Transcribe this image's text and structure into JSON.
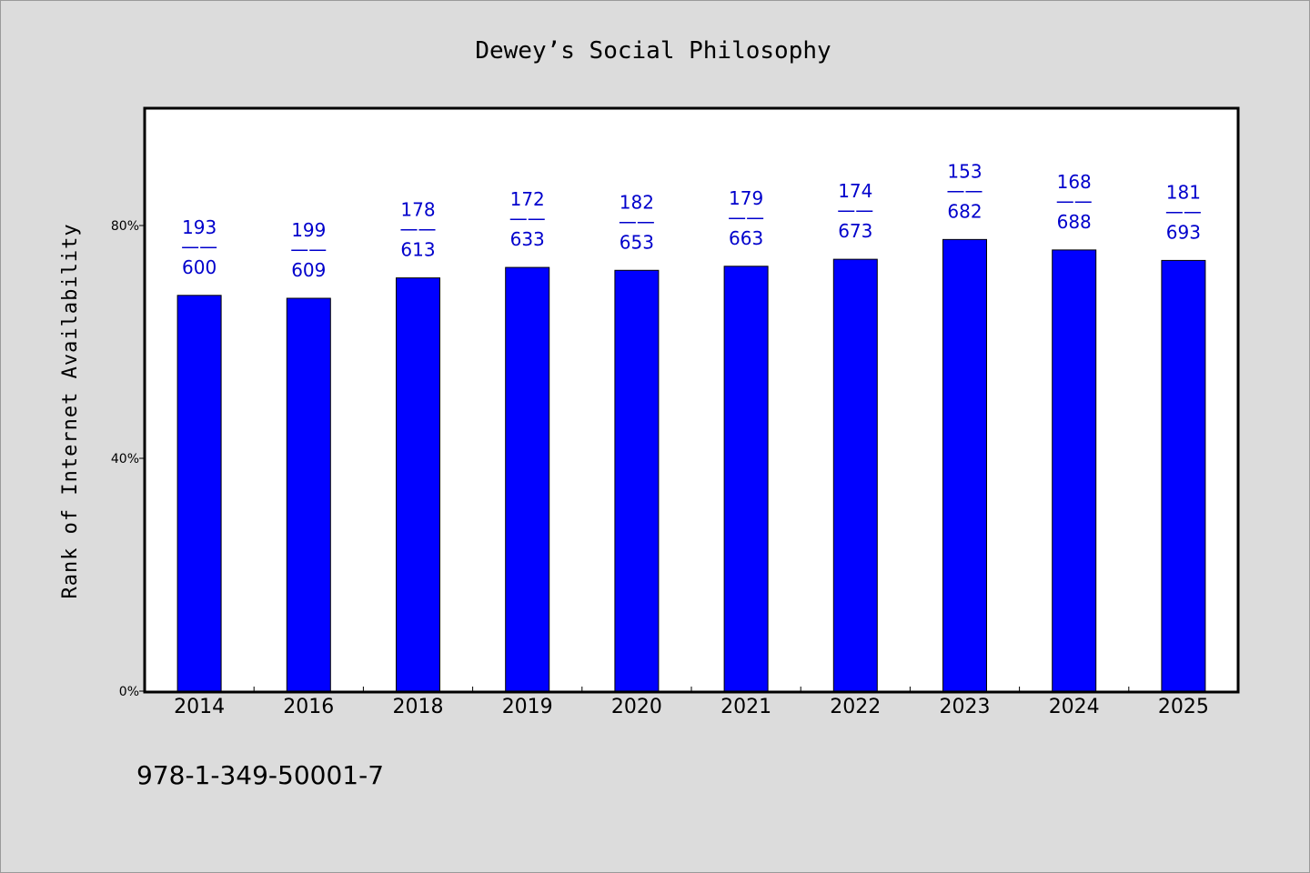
{
  "chart_data": {
    "type": "bar",
    "title": "Dewey’s Social Philosophy",
    "xlabel": "",
    "ylabel": "Rank of Internet Availability",
    "categories": [
      "2014",
      "2016",
      "2018",
      "2019",
      "2020",
      "2021",
      "2022",
      "2023",
      "2024",
      "2025"
    ],
    "values": [
      68,
      67.5,
      71,
      72.8,
      72.3,
      73,
      74.2,
      77.6,
      75.8,
      74
    ],
    "data_labels": [
      {
        "top": "193",
        "sep": "——",
        "bottom": "600"
      },
      {
        "top": "199",
        "sep": "——",
        "bottom": "609"
      },
      {
        "top": "178",
        "sep": "——",
        "bottom": "613"
      },
      {
        "top": "172",
        "sep": "——",
        "bottom": "633"
      },
      {
        "top": "182",
        "sep": "——",
        "bottom": "653"
      },
      {
        "top": "179",
        "sep": "——",
        "bottom": "663"
      },
      {
        "top": "174",
        "sep": "——",
        "bottom": "673"
      },
      {
        "top": "153",
        "sep": "——",
        "bottom": "682"
      },
      {
        "top": "168",
        "sep": "——",
        "bottom": "688"
      },
      {
        "top": "181",
        "sep": "——",
        "bottom": "693"
      }
    ],
    "yticks": [
      {
        "value": 0,
        "label": "0%"
      },
      {
        "value": 40,
        "label": "40%"
      },
      {
        "value": 80,
        "label": "80%"
      }
    ],
    "ylim": [
      0,
      100
    ],
    "grid": false,
    "legend": "none",
    "bar_color": "#0000ff",
    "label_color": "#0000cc"
  },
  "footer": {
    "isbn": "978-1-349-50001-7"
  }
}
